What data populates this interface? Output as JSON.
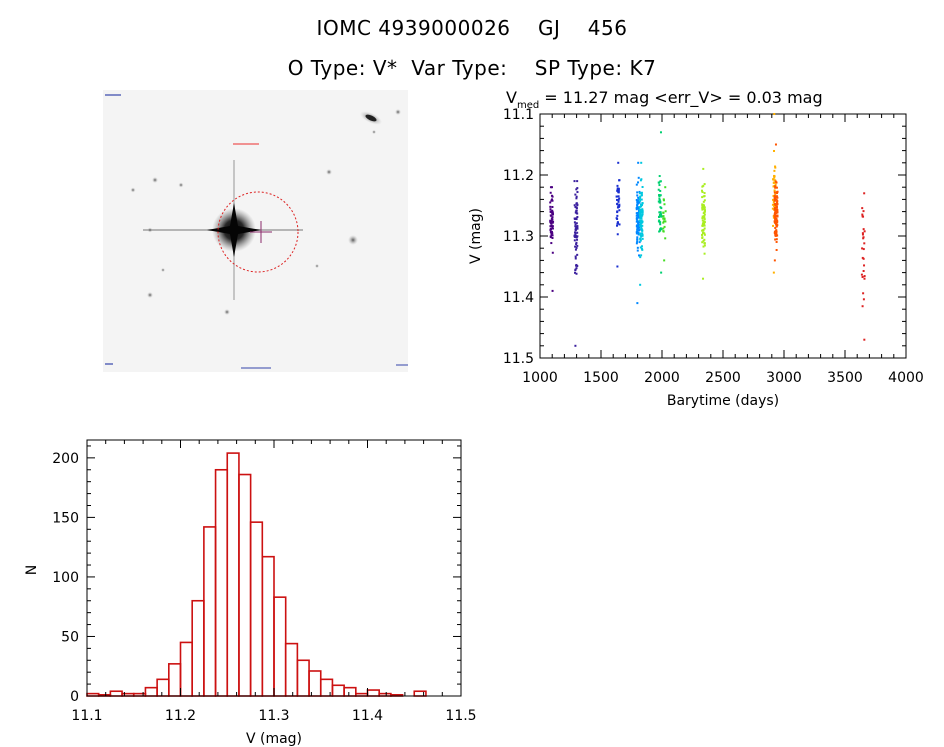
{
  "header": {
    "title_line1": "IOMC 4939000026    GJ    456",
    "title_line2": "O Type: V*  Var Type:    SP Type: K7"
  },
  "colors": {
    "histogram": "#cc1111",
    "axes": "#000000",
    "aperture_circle": "#dd2222",
    "image_background": "#f6f6f6"
  },
  "chart_data": [
    {
      "type": "scatter",
      "title": "V_med = 11.27 mag <err_V> = 0.03 mag",
      "title_parts": {
        "prefix": "V",
        "subscript": "med",
        "rest": " = 11.27 mag <err_V> = 0.03 mag"
      },
      "xlabel": "Barytime (days)",
      "ylabel": "V (mag)",
      "xlim": [
        1000,
        4000
      ],
      "ylim": [
        11.5,
        11.1
      ],
      "xticks": [
        1000,
        1500,
        2000,
        2500,
        3000,
        3500,
        4000
      ],
      "yticks": [
        11.1,
        11.2,
        11.3,
        11.4,
        11.5
      ],
      "grid": false,
      "series": [
        {
          "color": "#4b0082",
          "x": 1095,
          "y_min": 11.22,
          "y_max": 11.39,
          "center": 11.27,
          "spread": 0.025,
          "n": 60
        },
        {
          "color": "#3a1f9e",
          "x": 1295,
          "y_min": 11.21,
          "y_max": 11.48,
          "center": 11.29,
          "spread": 0.035,
          "n": 70
        },
        {
          "color": "#1a2fd0",
          "x": 1640,
          "y_min": 11.18,
          "y_max": 11.35,
          "center": 11.25,
          "spread": 0.02,
          "n": 40
        },
        {
          "color": "#0088ff",
          "x": 1805,
          "y_min": 11.18,
          "y_max": 11.41,
          "center": 11.27,
          "spread": 0.025,
          "n": 90
        },
        {
          "color": "#00c8e0",
          "x": 1830,
          "y_min": 11.18,
          "y_max": 11.38,
          "center": 11.27,
          "spread": 0.025,
          "n": 80
        },
        {
          "color": "#00d070",
          "x": 1985,
          "y_min": 11.13,
          "y_max": 11.36,
          "center": 11.25,
          "spread": 0.025,
          "n": 40
        },
        {
          "color": "#44dd22",
          "x": 2020,
          "y_min": 11.22,
          "y_max": 11.34,
          "center": 11.27,
          "spread": 0.02,
          "n": 20
        },
        {
          "color": "#aaee22",
          "x": 2340,
          "y_min": 11.19,
          "y_max": 11.37,
          "center": 11.27,
          "spread": 0.025,
          "n": 70
        },
        {
          "color": "#ffb000",
          "x": 2920,
          "y_min": 11.1,
          "y_max": 11.36,
          "center": 11.22,
          "spread": 0.03,
          "n": 40
        },
        {
          "color": "#ff5500",
          "x": 2935,
          "y_min": 11.15,
          "y_max": 11.34,
          "center": 11.26,
          "spread": 0.025,
          "n": 110
        },
        {
          "color": "#dd2222",
          "x": 3650,
          "y_min": 11.23,
          "y_max": 11.47,
          "center": 11.33,
          "spread": 0.05,
          "n": 25
        }
      ]
    },
    {
      "type": "bar",
      "title": "",
      "xlabel": "V (mag)",
      "ylabel": "N",
      "xlim": [
        11.1,
        11.5
      ],
      "ylim": [
        0,
        215
      ],
      "xticks": [
        11.1,
        11.2,
        11.3,
        11.4,
        11.5
      ],
      "yticks": [
        0,
        50,
        100,
        150,
        200
      ],
      "grid": false,
      "bin_start": 11.1,
      "bin_width": 0.0125,
      "values": [
        2,
        1,
        4,
        2,
        2,
        7,
        14,
        27,
        45,
        80,
        142,
        190,
        204,
        186,
        146,
        117,
        83,
        44,
        30,
        21,
        14,
        9,
        7,
        2,
        5,
        2,
        1,
        0,
        4
      ]
    }
  ]
}
